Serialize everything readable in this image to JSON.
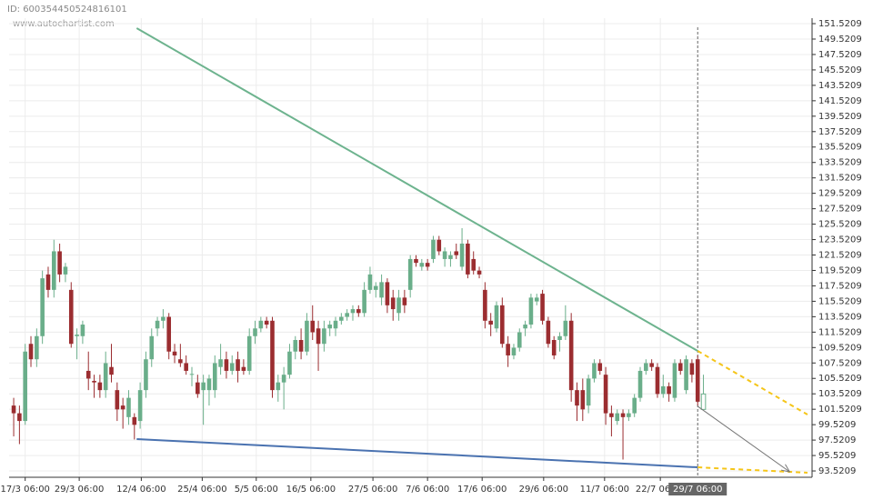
{
  "chart_data": {
    "type": "candlestick",
    "id_label": "ID: 600354450524816101",
    "watermark": "www.autochartist.com",
    "up_color": "#6aae8a",
    "down_color": "#9b2d30",
    "current_candle_hollow": true,
    "ohlc": [
      [
        102,
        103,
        98,
        101
      ],
      [
        101,
        102,
        97,
        100
      ],
      [
        100,
        110,
        99.5,
        109
      ],
      [
        110,
        111,
        107,
        108
      ],
      [
        108,
        112,
        107,
        111
      ],
      [
        111,
        119.5,
        110,
        118.5
      ],
      [
        119,
        120,
        116,
        117
      ],
      [
        117,
        123.5,
        116,
        122
      ],
      [
        122,
        123,
        118,
        119
      ],
      [
        119,
        120.5,
        118,
        120
      ],
      [
        117,
        118,
        109.5,
        110
      ],
      [
        111,
        112,
        108,
        111.2
      ],
      [
        111,
        113,
        110,
        112.5
      ],
      [
        106.5,
        109,
        104,
        105.5
      ],
      [
        105.2,
        106,
        103,
        105
      ],
      [
        105,
        106,
        103,
        104
      ],
      [
        104,
        109,
        103,
        107.5
      ],
      [
        107,
        110,
        105,
        106
      ],
      [
        104,
        105,
        100,
        101.5
      ],
      [
        102,
        103,
        99,
        101.5
      ],
      [
        100.5,
        104,
        99.5,
        103
      ],
      [
        100.5,
        101,
        97.6,
        99.5
      ],
      [
        100,
        105,
        99,
        104
      ],
      [
        104,
        109,
        103,
        108
      ],
      [
        108,
        112,
        107,
        111
      ],
      [
        112,
        113.5,
        111,
        113
      ],
      [
        113,
        114.5,
        112,
        113.5
      ],
      [
        113.5,
        114,
        108,
        109
      ],
      [
        109,
        110,
        107.5,
        108.5
      ],
      [
        108,
        110,
        107,
        107.5
      ],
      [
        107.5,
        108.5,
        106,
        106.5
      ],
      [
        106,
        107,
        104.5,
        106.1
      ],
      [
        105,
        106,
        103,
        103.5
      ],
      [
        104,
        106,
        99.5,
        105
      ],
      [
        104,
        106,
        102,
        105.5
      ],
      [
        104,
        108.5,
        103,
        107.5
      ],
      [
        107,
        110,
        106,
        108
      ],
      [
        108,
        109,
        105.5,
        106.5
      ],
      [
        106.5,
        108.5,
        106,
        107.5
      ],
      [
        108,
        109,
        105,
        106.5
      ],
      [
        107,
        108,
        106,
        106.5
      ],
      [
        106.5,
        112,
        106,
        111
      ],
      [
        111,
        113,
        110,
        112
      ],
      [
        112,
        113.5,
        111.5,
        113
      ],
      [
        113,
        113.5,
        112,
        112.5
      ],
      [
        113,
        113.5,
        103,
        104
      ],
      [
        104,
        106,
        102.5,
        105
      ],
      [
        105,
        107,
        101.5,
        106
      ],
      [
        106,
        110,
        105.5,
        109
      ],
      [
        109,
        111,
        108,
        110.5
      ],
      [
        110.5,
        112,
        108,
        109
      ],
      [
        109,
        114,
        108.5,
        113
      ],
      [
        113,
        115,
        110.5,
        111.5
      ],
      [
        112,
        113,
        106.5,
        110
      ],
      [
        110,
        113,
        109,
        112
      ],
      [
        112,
        113,
        111,
        112.5
      ],
      [
        112,
        113.5,
        111,
        113
      ],
      [
        113,
        114,
        112.5,
        113.5
      ],
      [
        113.5,
        114.5,
        113,
        114
      ],
      [
        114,
        115,
        113,
        114.5
      ],
      [
        114.5,
        115,
        113.5,
        114
      ],
      [
        114,
        118,
        113.5,
        117
      ],
      [
        117,
        120,
        116.5,
        119
      ],
      [
        117,
        118,
        116,
        117.5
      ],
      [
        116,
        119,
        115,
        118
      ],
      [
        118,
        118.5,
        114,
        115
      ],
      [
        116,
        117,
        113,
        114.5
      ],
      [
        114,
        117,
        113,
        116
      ],
      [
        116,
        117,
        114,
        115
      ],
      [
        117,
        121.5,
        116,
        121
      ],
      [
        121,
        121.5,
        120,
        120.5
      ],
      [
        120,
        121,
        119.5,
        120.5
      ],
      [
        120.5,
        121,
        119.5,
        120
      ],
      [
        121,
        124,
        120.5,
        123.5
      ],
      [
        123.5,
        124,
        121.5,
        122
      ],
      [
        121,
        122.5,
        120,
        122
      ],
      [
        121,
        122,
        120,
        121.5
      ],
      [
        122,
        123,
        121,
        121.5
      ],
      [
        120,
        125,
        119.5,
        123
      ],
      [
        123,
        123.5,
        118.5,
        119
      ],
      [
        121,
        122,
        119,
        119.5
      ],
      [
        119.5,
        120,
        118.5,
        119
      ],
      [
        117,
        118,
        112,
        113
      ],
      [
        113,
        114,
        111,
        112.5
      ],
      [
        112,
        115.5,
        111.5,
        115
      ],
      [
        115,
        116,
        109.5,
        110
      ],
      [
        110,
        111,
        107,
        108.5
      ],
      [
        108.5,
        110,
        108,
        109.5
      ],
      [
        109.5,
        112,
        109,
        111.5
      ],
      [
        112,
        113,
        111,
        112.5
      ],
      [
        112.5,
        116.5,
        112,
        116
      ],
      [
        115.5,
        116.5,
        115,
        116
      ],
      [
        116.5,
        117,
        112.5,
        113
      ],
      [
        113,
        113.5,
        109.5,
        110
      ],
      [
        110.5,
        111,
        108,
        108.5
      ],
      [
        110.5,
        111.5,
        109,
        111
      ],
      [
        111,
        115,
        110.5,
        113
      ],
      [
        113,
        114,
        102.5,
        104
      ],
      [
        104,
        105,
        100,
        102
      ],
      [
        104,
        105.5,
        100,
        101.5
      ],
      [
        102,
        106,
        101,
        105.5
      ],
      [
        105.5,
        108,
        105,
        107.5
      ],
      [
        107.5,
        108,
        106,
        106.5
      ],
      [
        106,
        107,
        99.5,
        101
      ],
      [
        101,
        102,
        98,
        100.5
      ],
      [
        100,
        101.5,
        99.5,
        101
      ],
      [
        101,
        101.5,
        95,
        100.5
      ],
      [
        100.5,
        101.5,
        100,
        101
      ],
      [
        101,
        103.5,
        100.5,
        103
      ],
      [
        103,
        107,
        102.5,
        106.5
      ],
      [
        106.5,
        108,
        106,
        107.5
      ],
      [
        107.5,
        108,
        106.5,
        107
      ],
      [
        107,
        107.5,
        103,
        103.5
      ],
      [
        103.5,
        106,
        103,
        104.5
      ],
      [
        104.5,
        105,
        102.5,
        103.5
      ],
      [
        103,
        108,
        102.5,
        107.5
      ],
      [
        107.5,
        108,
        106,
        106.5
      ],
      [
        104,
        108.5,
        103.5,
        108
      ],
      [
        107.5,
        108,
        105,
        106
      ],
      [
        108,
        108.5,
        102,
        102.5
      ],
      [
        101.5,
        106,
        101.5,
        103.5
      ]
    ],
    "resistance": {
      "color": "#6db38e",
      "x": [
        21.4,
        119
      ],
      "y": [
        150.93,
        109.08
      ]
    },
    "resistance_forecast": {
      "color": "#f5c518",
      "x": [
        119,
        138.1
      ],
      "y": [
        109.08,
        100.83
      ]
    },
    "support": {
      "color": "#4a72b0",
      "x": [
        21.4,
        119
      ],
      "y": [
        97.65,
        93.99
      ]
    },
    "support_forecast": {
      "color": "#f5c518",
      "x": [
        119,
        138.1
      ],
      "y": [
        93.99,
        93.29
      ]
    },
    "forecast_arrow": {
      "color": "#777777",
      "x": [
        119,
        135
      ],
      "y": [
        101.9,
        93.41
      ]
    },
    "xlim": [
      -0.8,
      138.9
    ],
    "ylim": [
      92.7,
      152.23
    ],
    "xticks": [
      {
        "value": 2,
        "label": "17/3 06:00"
      },
      {
        "value": 11.4,
        "label": "29/3 06:00"
      },
      {
        "value": 22.2,
        "label": "12/4 06:00"
      },
      {
        "value": 32.8,
        "label": "25/4 06:00"
      },
      {
        "value": 42.2,
        "label": "5/5 06:00"
      },
      {
        "value": 51.7,
        "label": "16/5 06:00"
      },
      {
        "value": 62.5,
        "label": "27/5 06:00"
      },
      {
        "value": 72,
        "label": "7/6 06:00"
      },
      {
        "value": 81.5,
        "label": "17/6 06:00"
      },
      {
        "value": 92.2,
        "label": "29/6 06:00"
      },
      {
        "value": 102.8,
        "label": "11/7 06:00"
      },
      {
        "value": 112.5,
        "label": "22/7 06:00"
      }
    ],
    "current_tick": {
      "value": 119,
      "label": "29/7 06:00"
    },
    "yticks": [
      93.5209,
      95.5209,
      97.5209,
      99.5209,
      101.5209,
      103.5209,
      105.5209,
      107.5209,
      109.5209,
      111.5209,
      113.5209,
      115.5209,
      117.5209,
      119.5209,
      121.5209,
      123.5209,
      125.5209,
      127.5209,
      129.5209,
      131.5209,
      133.5209,
      135.5209,
      137.5209,
      139.5209,
      141.5209,
      143.5209,
      145.5209,
      147.5209,
      149.5209,
      151.5209
    ],
    "grid": true
  }
}
